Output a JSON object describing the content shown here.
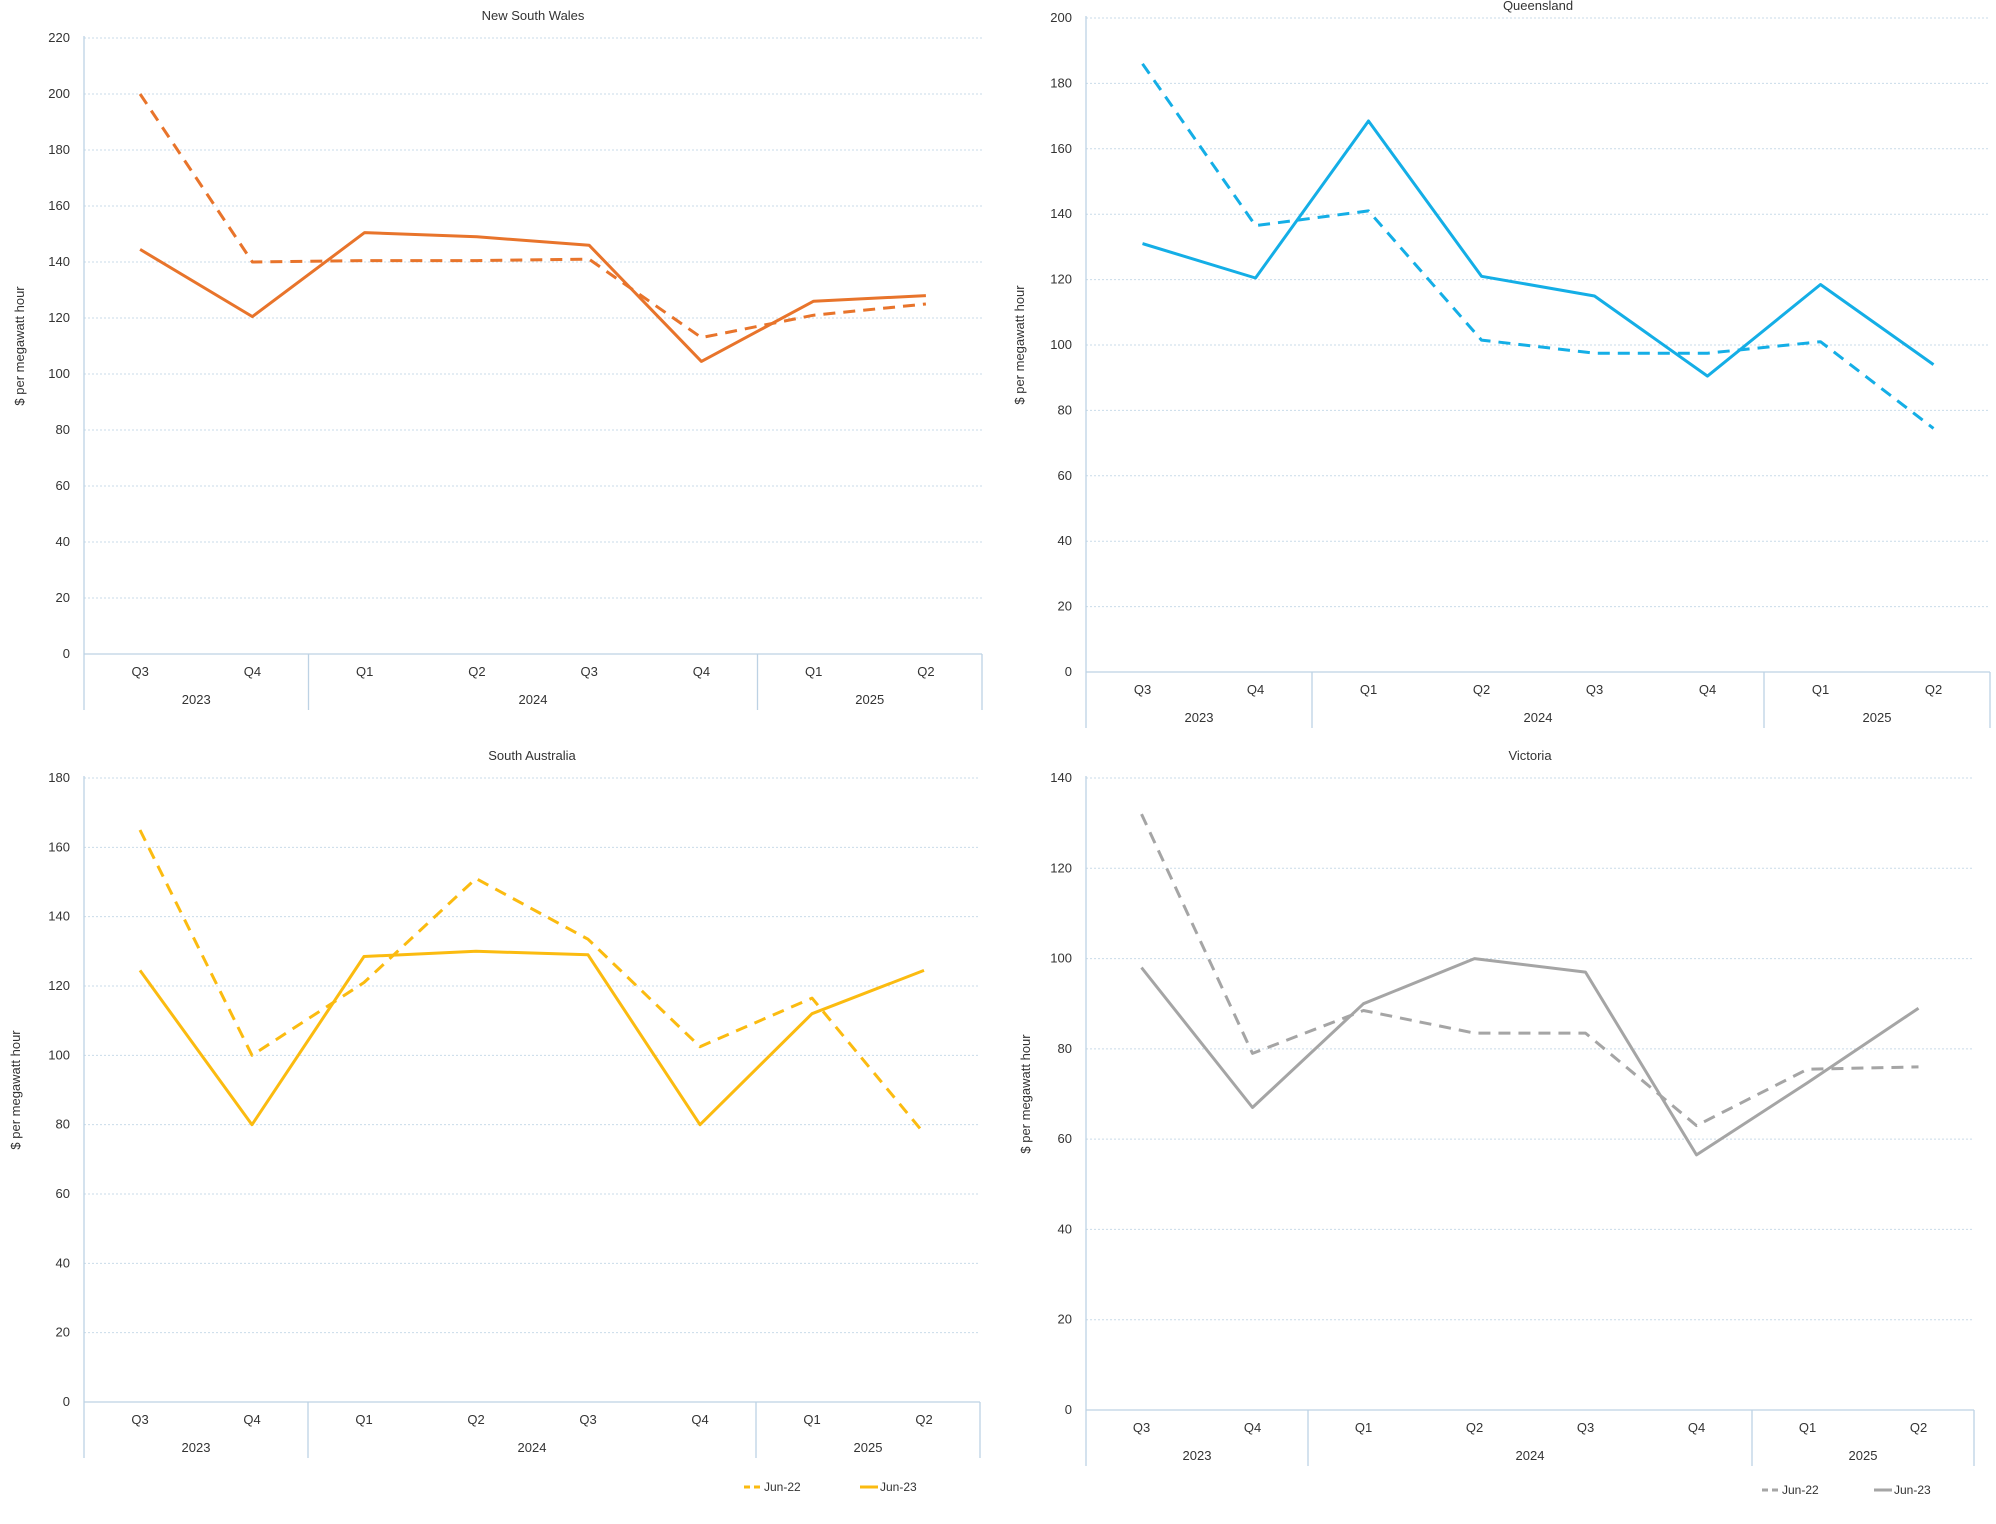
{
  "chart_data": [
    {
      "type": "line",
      "title": "New South Wales",
      "ylabel": "$ per megawatt hour",
      "ylim": [
        0,
        220
      ],
      "yticks": [
        0,
        20,
        40,
        60,
        80,
        100,
        120,
        140,
        160,
        180,
        200,
        220
      ],
      "categories": [
        "Q3",
        "Q4",
        "Q1",
        "Q2",
        "Q3",
        "Q4",
        "Q1",
        "Q2"
      ],
      "year_groups": [
        {
          "label": "2023",
          "span": 2
        },
        {
          "label": "2024",
          "span": 4
        },
        {
          "label": "2025",
          "span": 2
        }
      ],
      "grid": true,
      "color": "#e8742b",
      "series": [
        {
          "name": "Jun-22",
          "style": "dashed",
          "values": [
            200,
            140,
            140.5,
            140.5,
            141,
            113,
            121,
            125
          ]
        },
        {
          "name": "Jun-23",
          "style": "solid",
          "values": [
            144.5,
            120.5,
            150.5,
            149,
            146,
            104.5,
            126,
            128
          ]
        }
      ],
      "legend": null
    },
    {
      "type": "line",
      "title": "Queensland",
      "ylabel": "$ per megawatt hour",
      "ylim": [
        0,
        200
      ],
      "yticks": [
        0,
        20,
        40,
        60,
        80,
        100,
        120,
        140,
        160,
        180,
        200
      ],
      "categories": [
        "Q3",
        "Q4",
        "Q1",
        "Q2",
        "Q3",
        "Q4",
        "Q1",
        "Q2"
      ],
      "year_groups": [
        {
          "label": "2023",
          "span": 2
        },
        {
          "label": "2024",
          "span": 4
        },
        {
          "label": "2025",
          "span": 2
        }
      ],
      "grid": true,
      "color": "#14aee6",
      "series": [
        {
          "name": "Jun-22",
          "style": "dashed",
          "values": [
            186,
            136.5,
            141,
            101.5,
            97.5,
            97.5,
            101,
            74.5
          ]
        },
        {
          "name": "Jun-23",
          "style": "solid",
          "values": [
            131,
            120.5,
            168.5,
            121,
            115,
            90.5,
            118.5,
            94
          ]
        }
      ],
      "legend": null
    },
    {
      "type": "line",
      "title": "South Australia",
      "ylabel": "$ per megawatt hour",
      "ylim": [
        0,
        180
      ],
      "yticks": [
        0,
        20,
        40,
        60,
        80,
        100,
        120,
        140,
        160,
        180
      ],
      "categories": [
        "Q3",
        "Q4",
        "Q1",
        "Q2",
        "Q3",
        "Q4",
        "Q1",
        "Q2"
      ],
      "year_groups": [
        {
          "label": "2023",
          "span": 2
        },
        {
          "label": "2024",
          "span": 4
        },
        {
          "label": "2025",
          "span": 2
        }
      ],
      "grid": true,
      "color": "#fbbb10",
      "series": [
        {
          "name": "Jun-22",
          "style": "dashed",
          "values": [
            165,
            100,
            121,
            151,
            133.5,
            102.5,
            116.5,
            77.5
          ]
        },
        {
          "name": "Jun-23",
          "style": "solid",
          "values": [
            124.5,
            80,
            128.5,
            130,
            129,
            80,
            112,
            124.5
          ]
        }
      ],
      "legend": "bottom-right"
    },
    {
      "type": "line",
      "title": "Victoria",
      "ylabel": "$ per megawatt hour",
      "ylim": [
        0,
        140
      ],
      "yticks": [
        0,
        20,
        40,
        60,
        80,
        100,
        120,
        140
      ],
      "categories": [
        "Q3",
        "Q4",
        "Q1",
        "Q2",
        "Q3",
        "Q4",
        "Q1",
        "Q2"
      ],
      "year_groups": [
        {
          "label": "2023",
          "span": 2
        },
        {
          "label": "2024",
          "span": 4
        },
        {
          "label": "2025",
          "span": 2
        }
      ],
      "grid": true,
      "color": "#a5a5a5",
      "series": [
        {
          "name": "Jun-22",
          "style": "dashed",
          "values": [
            132,
            79,
            88.5,
            83.5,
            83.5,
            63,
            75.5,
            76
          ]
        },
        {
          "name": "Jun-23",
          "style": "solid",
          "values": [
            98,
            67,
            90,
            100,
            97,
            56.5,
            72.5,
            89
          ]
        }
      ],
      "legend": "bottom-right"
    }
  ]
}
